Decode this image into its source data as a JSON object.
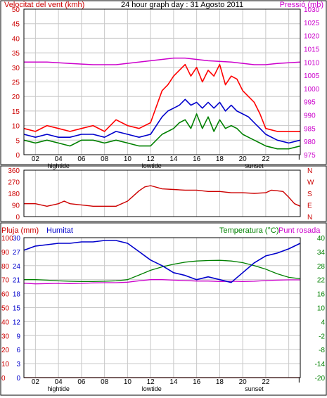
{
  "colors": {
    "wind_max": "#ff0000",
    "wind_avg": "#0000cc",
    "wind_min": "#008000",
    "pressure": "#cc00cc",
    "direction": "#cc0000",
    "rain": "#cc0000",
    "humidity": "#0000cc",
    "temperature": "#008000",
    "dewpoint": "#cc00cc",
    "grid": "#c8c8c8",
    "axis": "#000000"
  },
  "chart_data": [
    {
      "id": "wind",
      "type": "line",
      "title": "24 hour graph day : 31 Agosto 2011",
      "ylabel_left": "Velocitat del vent (kmh)",
      "ylabel_right": "Pressió (mb)",
      "ylim_left": [
        0,
        50
      ],
      "ylim_right": [
        975,
        1030
      ],
      "yticks_left": [
        "0",
        "5",
        "10",
        "15",
        "20",
        "25",
        "30",
        "35",
        "40",
        "45",
        "50"
      ],
      "yticks_right": [
        "975",
        "980",
        "985",
        "990",
        "995",
        "1000",
        "1005",
        "1010",
        "1015",
        "1020",
        "1025",
        "1030"
      ],
      "xtick_labels": [
        "02",
        "04",
        "06",
        "08",
        "10",
        "12",
        "14",
        "16",
        "18",
        "20",
        "22"
      ],
      "events": [
        {
          "label": "hightide",
          "x": 3.0
        },
        {
          "label": "lowtide",
          "x": 11.1
        },
        {
          "label": "sunset",
          "x": 20.0
        }
      ],
      "grid": true,
      "series": [
        {
          "key": "wind_max",
          "axis": "left",
          "x": [
            0,
            1,
            2,
            3,
            4,
            5,
            6,
            7,
            8,
            9,
            10,
            11,
            12,
            12.5,
            13,
            13.5,
            14,
            14.5,
            15,
            15.5,
            16,
            16.5,
            17,
            17.5,
            18,
            18.5,
            19,
            19.5,
            20,
            20.5,
            21,
            22,
            23,
            24
          ],
          "y": [
            9,
            8,
            10,
            9,
            8,
            9,
            10,
            8,
            12,
            10,
            9,
            11,
            22,
            24,
            27,
            29,
            31,
            27,
            30,
            25,
            29,
            27,
            31,
            24,
            27,
            26,
            22,
            20,
            18,
            14,
            9,
            8,
            8,
            8
          ]
        },
        {
          "key": "wind_avg",
          "axis": "left",
          "x": [
            0,
            1,
            2,
            3,
            4,
            5,
            6,
            7,
            8,
            9,
            10,
            11,
            12,
            12.5,
            13,
            13.5,
            14,
            14.5,
            15,
            15.5,
            16,
            16.5,
            17,
            17.5,
            18,
            18.5,
            19,
            19.5,
            20,
            20.5,
            21,
            22,
            23,
            24
          ],
          "y": [
            7,
            6,
            7,
            6,
            6,
            7,
            7,
            6,
            8,
            7,
            6,
            7,
            13,
            15,
            16,
            17,
            19,
            17,
            18,
            16,
            18,
            16,
            18,
            15,
            17,
            15,
            14,
            13,
            11,
            9,
            7,
            5,
            4,
            5
          ]
        },
        {
          "key": "wind_min",
          "axis": "left",
          "x": [
            0,
            1,
            2,
            3,
            4,
            5,
            6,
            7,
            8,
            9,
            10,
            11,
            12,
            12.5,
            13,
            13.5,
            14,
            14.5,
            15,
            15.5,
            16,
            16.5,
            17,
            17.5,
            18,
            18.5,
            19,
            19.5,
            20,
            20.5,
            21,
            22,
            23,
            24
          ],
          "y": [
            5,
            4,
            5,
            4,
            3,
            5,
            5,
            4,
            5,
            4,
            3,
            3,
            7,
            8,
            9,
            11,
            12,
            9,
            14,
            9,
            13,
            8,
            12,
            9,
            10,
            9,
            7,
            6,
            5,
            4,
            3,
            2,
            2,
            3
          ]
        },
        {
          "key": "pressure",
          "axis": "right",
          "x": [
            0,
            2,
            4,
            6,
            8,
            10,
            12,
            13,
            14,
            15,
            16,
            18,
            20,
            21,
            22,
            24
          ],
          "y": [
            1010,
            1010,
            1009.5,
            1009,
            1009,
            1010,
            1011,
            1011.5,
            1011.5,
            1011,
            1010.5,
            1010,
            1009,
            1009,
            1009.5,
            1010
          ]
        }
      ]
    },
    {
      "id": "direction",
      "type": "line",
      "ylim": [
        0,
        360
      ],
      "yticks": [
        "0",
        "90",
        "180",
        "270",
        "360"
      ],
      "compass": [
        "N",
        "W",
        "S",
        "E",
        "N"
      ],
      "xtick_labels": [
        "02",
        "04",
        "06",
        "08",
        "10",
        "12",
        "14",
        "16",
        "18",
        "20",
        "22"
      ],
      "grid": true,
      "series": [
        {
          "key": "direction",
          "x": [
            0,
            1,
            2,
            3,
            3.5,
            4,
            6,
            8,
            9,
            9.5,
            10,
            10.5,
            11,
            12,
            13,
            14,
            15,
            16,
            17,
            18,
            19,
            20,
            21,
            21.5,
            22,
            22.5,
            23,
            23.5,
            24
          ],
          "y": [
            100,
            100,
            80,
            100,
            120,
            100,
            80,
            80,
            120,
            160,
            200,
            230,
            240,
            215,
            210,
            205,
            205,
            195,
            195,
            185,
            185,
            180,
            185,
            205,
            200,
            195,
            150,
            100,
            80
          ]
        }
      ]
    },
    {
      "id": "temp_hum",
      "type": "line",
      "ylabel_left_1": "Pluja (mm)",
      "ylabel_left_2": "Humitat",
      "ylabel_right": "Temperatura (°C)",
      "ylabel_right_2": "Punt rosada",
      "ylim_rain": [
        0,
        100
      ],
      "ylim_hum": [
        0,
        30
      ],
      "ylim_temp": [
        -20,
        40
      ],
      "yticks_rain": [
        "100",
        "90",
        "80",
        "70",
        "60",
        "50",
        "40",
        "30",
        "20",
        "10",
        "0"
      ],
      "yticks_hum": [
        "30",
        "27",
        "24",
        "21",
        "18",
        "15",
        "12",
        "9",
        "6",
        "3",
        "0"
      ],
      "yticks_temp": [
        "40",
        "34",
        "28",
        "22",
        "16",
        "10",
        "4",
        "-2",
        "-8",
        "-14",
        "-20"
      ],
      "xtick_labels": [
        "02",
        "04",
        "06",
        "08",
        "10",
        "12",
        "14",
        "16",
        "18",
        "20",
        "22"
      ],
      "events": [
        {
          "label": "hightide",
          "x": 3.0
        },
        {
          "label": "lowtide",
          "x": 11.1
        },
        {
          "label": "sunset",
          "x": 20.0
        }
      ],
      "grid": true,
      "series": [
        {
          "key": "humidity",
          "axis": "rain",
          "x": [
            0,
            1,
            2,
            3,
            4,
            5,
            6,
            7,
            8,
            9,
            10,
            11,
            12,
            13,
            14,
            15,
            16,
            17,
            18,
            19,
            20,
            21,
            22,
            23,
            24
          ],
          "y": [
            91,
            94,
            95,
            96,
            96,
            97,
            97,
            98,
            98,
            96,
            90,
            84,
            80,
            75,
            73,
            70,
            72,
            70,
            68,
            75,
            82,
            87,
            89,
            92,
            96
          ]
        },
        {
          "key": "temperature",
          "axis": "temp",
          "x": [
            0,
            1,
            2,
            3,
            4,
            5,
            6,
            7,
            8,
            9,
            10,
            11,
            12,
            13,
            14,
            15,
            16,
            17,
            18,
            19,
            20,
            21,
            22,
            23,
            24
          ],
          "y": [
            22,
            22,
            21.8,
            21.5,
            21.3,
            21.2,
            21.2,
            21.3,
            21.5,
            22,
            24,
            26,
            27.5,
            28.6,
            29.5,
            30,
            30.2,
            30.3,
            30,
            29.3,
            28,
            26.5,
            24.5,
            23,
            22.4
          ]
        },
        {
          "key": "dewpoint",
          "axis": "temp",
          "x": [
            0,
            1,
            2,
            3,
            4,
            5,
            6,
            7,
            8,
            9,
            10,
            11,
            12,
            13,
            14,
            15,
            16,
            17,
            18,
            19,
            20,
            21,
            22,
            23,
            24
          ],
          "y": [
            20.5,
            20.2,
            20.3,
            20.4,
            20.3,
            20.4,
            20.6,
            20.7,
            20.7,
            20.9,
            21.5,
            22,
            22,
            21.8,
            21.6,
            21.4,
            21.4,
            21.2,
            21.3,
            21.2,
            21.3,
            21.6,
            21.8,
            21.9,
            21.9
          ]
        },
        {
          "key": "rain",
          "axis": "rain",
          "x": [
            0,
            24
          ],
          "y": [
            0,
            0
          ]
        }
      ]
    }
  ],
  "labels": {
    "title": "24 hour graph day : 31 Agosto 2011",
    "wind_speed": "Velocitat del vent (kmh)",
    "pressure": "Pressió (mb)",
    "rain": "Pluja (mm)",
    "humidity": "Humitat",
    "temperature": "Temperatura (°C)",
    "dewpoint": "Punt rosada"
  }
}
